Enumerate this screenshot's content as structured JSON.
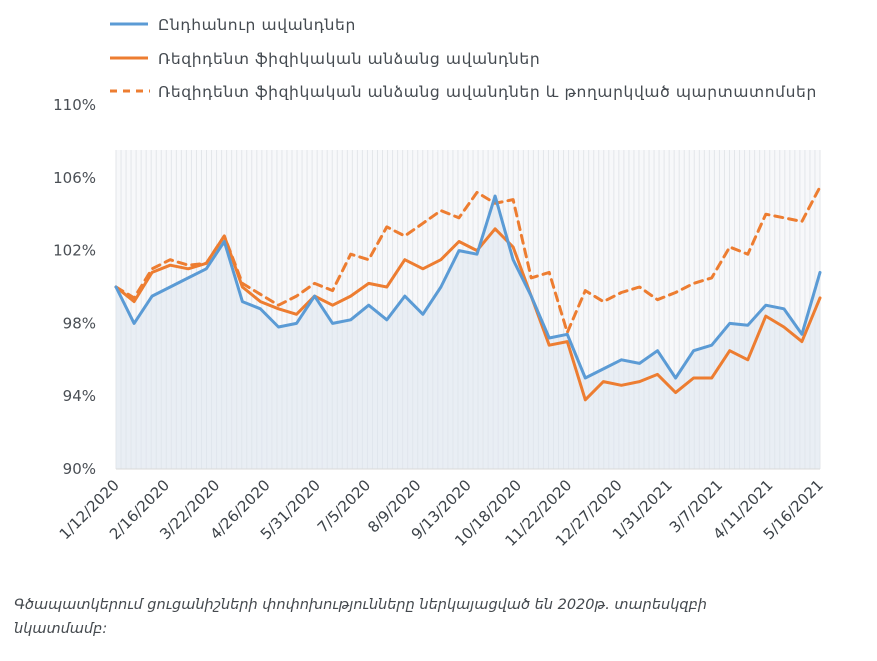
{
  "chart_data": {
    "type": "line",
    "x_ticks": [
      "1/12/2020",
      "2/16/2020",
      "3/22/2020",
      "4/26/2020",
      "5/31/2020",
      "7/5/2020",
      "8/9/2020",
      "9/13/2020",
      "10/18/2020",
      "11/22/2020",
      "12/27/2020",
      "1/31/2021",
      "3/7/2021",
      "4/11/2021",
      "5/16/2021"
    ],
    "y_ticks": [
      "90%",
      "94%",
      "98%",
      "102%",
      "106%",
      "110%"
    ],
    "ylim": [
      90,
      110
    ],
    "grid": "vertical light lines",
    "legend_position": "top-left",
    "series": [
      {
        "name": "Ընդհանուր ավանդներ",
        "color": "#5b9bd5",
        "style": "solid",
        "fill_area": true,
        "values": [
          100.0,
          98.0,
          99.5,
          100.0,
          100.5,
          101.0,
          102.5,
          99.2,
          98.8,
          97.8,
          98.0,
          99.5,
          98.0,
          98.2,
          99.0,
          98.2,
          99.5,
          98.5,
          100.0,
          102.0,
          101.8,
          105.0,
          101.5,
          99.5,
          97.2,
          97.4,
          95.0,
          95.5,
          96.0,
          95.8,
          96.5,
          95.0,
          96.5,
          96.8,
          98.0,
          97.9,
          99.0,
          98.8,
          97.4,
          100.8
        ]
      },
      {
        "name": "Ռեզիդենտ ֆիզիկական անձանց ավանդներ",
        "color": "#ed7d31",
        "style": "solid",
        "fill_area": false,
        "values": [
          100.0,
          99.2,
          100.8,
          101.2,
          101.0,
          101.3,
          102.8,
          100.0,
          99.2,
          98.8,
          98.5,
          99.5,
          99.0,
          99.5,
          100.2,
          100.0,
          101.5,
          101.0,
          101.5,
          102.5,
          102.0,
          103.2,
          102.2,
          99.5,
          96.8,
          97.0,
          93.8,
          94.8,
          94.6,
          94.8,
          95.2,
          94.2,
          95.0,
          95.0,
          96.5,
          96.0,
          98.4,
          97.8,
          97.0,
          99.4
        ]
      },
      {
        "name": "Ռեզիդենտ ֆիզիկական անձանց ավանդներ և թողարկված պարտատոմսեր",
        "color": "#ed7d31",
        "style": "dashed",
        "fill_area": false,
        "values": [
          100.0,
          99.4,
          101.0,
          101.5,
          101.2,
          101.3,
          102.8,
          100.2,
          99.6,
          99.0,
          99.5,
          100.2,
          99.8,
          101.8,
          101.5,
          103.3,
          102.8,
          103.5,
          104.2,
          103.8,
          105.2,
          104.6,
          104.8,
          100.5,
          100.8,
          97.5,
          99.8,
          99.2,
          99.7,
          100.0,
          99.3,
          99.7,
          100.2,
          100.5,
          102.2,
          101.8,
          104.0,
          103.8,
          103.6,
          105.5
        ]
      }
    ]
  },
  "footnote": "Գծապատկերում ցուցանիշների փոփոխությունները ներկայացված են 2020թ. տարեսկզբի նկատմամբ:"
}
